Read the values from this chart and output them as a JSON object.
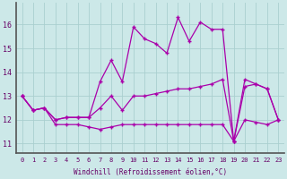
{
  "xlabel": "Windchill (Refroidissement éolien,°C)",
  "hours": [
    0,
    1,
    2,
    3,
    4,
    5,
    6,
    7,
    8,
    9,
    10,
    11,
    12,
    13,
    14,
    15,
    16,
    17,
    18,
    19,
    20,
    21,
    22,
    23
  ],
  "line_min": [
    13.0,
    12.4,
    12.5,
    11.8,
    11.8,
    11.8,
    11.7,
    11.6,
    11.7,
    11.8,
    11.8,
    11.8,
    11.8,
    11.8,
    11.8,
    11.8,
    11.8,
    11.8,
    11.8,
    11.1,
    12.0,
    11.9,
    11.8,
    12.0
  ],
  "line_mid": [
    13.0,
    12.4,
    12.5,
    12.0,
    12.1,
    12.1,
    12.1,
    12.5,
    13.0,
    12.4,
    13.0,
    13.0,
    13.1,
    13.2,
    13.3,
    13.3,
    13.4,
    13.5,
    13.7,
    11.1,
    13.4,
    13.5,
    13.3,
    12.0
  ],
  "line_max": [
    13.0,
    12.4,
    12.5,
    12.0,
    12.1,
    12.1,
    12.1,
    13.6,
    14.5,
    13.6,
    15.9,
    15.4,
    15.2,
    14.8,
    16.3,
    15.3,
    16.1,
    15.8,
    15.8,
    11.1,
    13.7,
    13.5,
    13.3,
    12.0
  ],
  "line_color": "#aa00aa",
  "bg_color": "#cce8e8",
  "grid_color": "#aacfcf",
  "yticks": [
    11,
    12,
    13,
    14,
    15,
    16
  ],
  "ylim": [
    10.6,
    16.9
  ],
  "xlim": [
    -0.5,
    23.5
  ]
}
